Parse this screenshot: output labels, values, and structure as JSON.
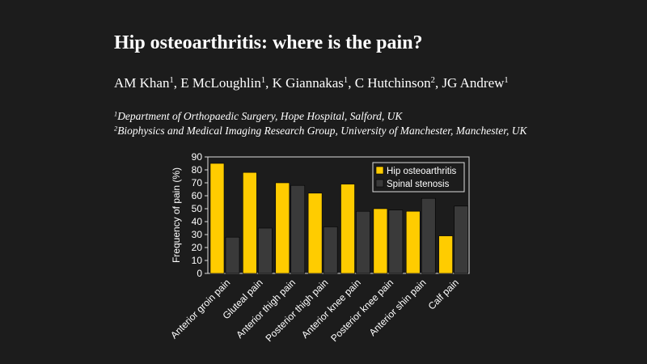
{
  "slide": {
    "title": "Hip osteoarthritis: where is the pain?",
    "authors": [
      {
        "name": "AM Khan",
        "sup": "1",
        "sep": ", "
      },
      {
        "name": "E McLoughlin",
        "sup": "1",
        "sep": ", "
      },
      {
        "name": "K Giannakas",
        "sup": "1",
        "sep": ", "
      },
      {
        "name": "C Hutchinson",
        "sup": "2",
        "sep": ", "
      },
      {
        "name": "JG Andrew",
        "sup": "1",
        "sep": ""
      }
    ],
    "affiliations": [
      {
        "sup": "1",
        "text": "Department of Orthopaedic Surgery, Hope Hospital, Salford, UK"
      },
      {
        "sup": "2",
        "text": "Biophysics and Medical Imaging Research Group, University of Manchester, Manchester, UK"
      }
    ]
  },
  "chart_data": {
    "type": "bar",
    "ylabel": "Frequency of pain (%)",
    "xlabel": "",
    "ylim": [
      0,
      90
    ],
    "yticks": [
      0,
      10,
      20,
      30,
      40,
      50,
      60,
      70,
      80,
      90
    ],
    "categories": [
      "Anterior groin pain",
      "Gluteal pain",
      "Anterior thigh pain",
      "Posterior thigh pain",
      "Anterior knee pain",
      "Posterior knee pain",
      "Anterior shin pain",
      "Calf pain"
    ],
    "series": [
      {
        "name": "Hip osteoarthritis",
        "color": "#ffcc00",
        "values": [
          85,
          78,
          70,
          62,
          69,
          50,
          48,
          29
        ]
      },
      {
        "name": "Spinal stenosis",
        "color": "#3a3a3a",
        "values": [
          28,
          35,
          68,
          36,
          48,
          49,
          58,
          52
        ]
      }
    ],
    "grid": false,
    "legend": "top-right"
  }
}
